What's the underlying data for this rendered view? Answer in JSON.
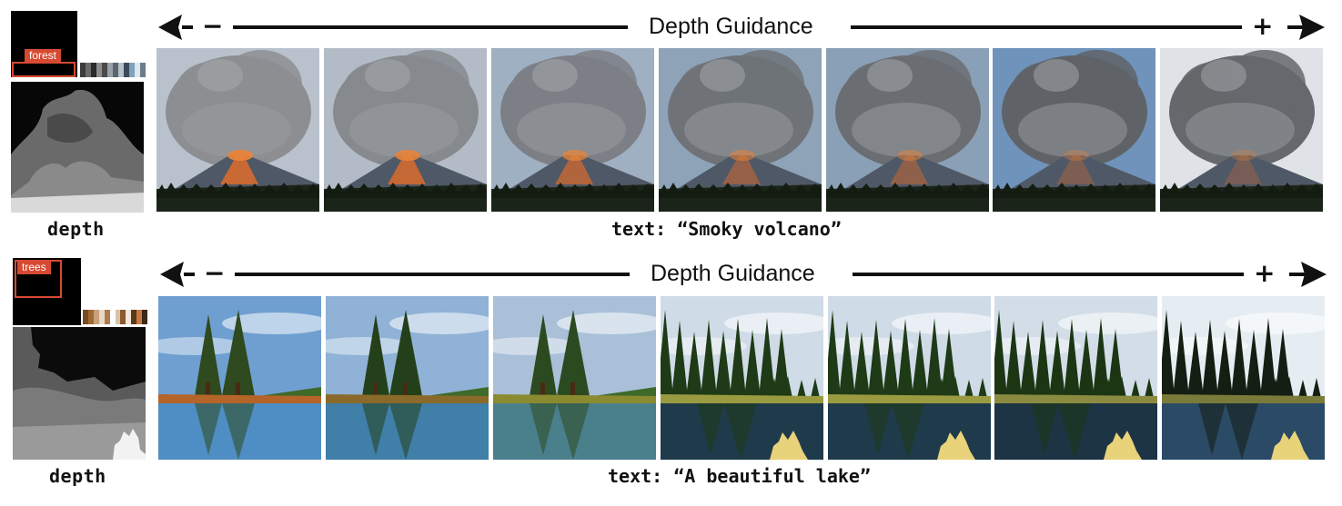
{
  "rows": [
    {
      "tag": "forest",
      "depth_caption": "depth",
      "guidance_label": "Depth Guidance",
      "minus": "−",
      "plus": "+",
      "text_caption": "text: “Smoky volcano”",
      "palette": [
        "#3c3c3c",
        "#6b6b6b",
        "#2a2a2a",
        "#8d8d8d",
        "#4a4a4a",
        "#9aa2aa",
        "#5b6671",
        "#b8c1c9",
        "#3b4a5a",
        "#7fa2bd",
        "#dfe6ec",
        "#6a7c8a"
      ],
      "tiles": [
        {
          "name": "volcano-guidance-1",
          "lava": 0.95,
          "sky": "#b9c2cc",
          "smoke": "#8c8e92"
        },
        {
          "name": "volcano-guidance-2",
          "lava": 0.9,
          "sky": "#b3bcc6",
          "smoke": "#868a8f"
        },
        {
          "name": "volcano-guidance-3",
          "lava": 0.75,
          "sky": "#9fb0c2",
          "smoke": "#7c8086"
        },
        {
          "name": "volcano-guidance-4",
          "lava": 0.55,
          "sky": "#8fa3b8",
          "smoke": "#6f7378"
        },
        {
          "name": "volcano-guidance-5",
          "lava": 0.5,
          "sky": "#8aa0b6",
          "smoke": "#6a6e73"
        },
        {
          "name": "volcano-guidance-6",
          "lava": 0.35,
          "sky": "#6f93bb",
          "smoke": "#5f6368"
        },
        {
          "name": "volcano-guidance-7",
          "lava": 0.3,
          "sky": "#dfe3e8",
          "smoke": "#65686c"
        }
      ]
    },
    {
      "tag": "trees",
      "depth_caption": "depth",
      "guidance_label": "Depth Guidance",
      "minus": "−",
      "plus": "+",
      "text_caption": "text: “A beautiful lake”",
      "palette": [
        "#7a4a20",
        "#a06a35",
        "#c9a07a",
        "#e8d8c8",
        "#b07a50",
        "#ffffff",
        "#d9c2aa",
        "#8a5a30",
        "#f2e6da",
        "#5a3a1a",
        "#c87a40",
        "#3a2a1a"
      ],
      "tiles": [
        {
          "name": "lake-guidance-1",
          "sky": "#6f9fd0",
          "water": "#4f8ec4",
          "tree": "#2e4a1e",
          "bank": "#b5652a"
        },
        {
          "name": "lake-guidance-2",
          "sky": "#8fb2d6",
          "water": "#3f7fa8",
          "tree": "#24401a",
          "bank": "#8a6a2a"
        },
        {
          "name": "lake-guidance-3",
          "sky": "#a9c0d8",
          "water": "#4a7f8c",
          "tree": "#2c4a20",
          "bank": "#8a8a30"
        },
        {
          "name": "lake-guidance-4",
          "sky": "#cfdbe6",
          "water": "#1f3a4a",
          "tree": "#1e3a16",
          "bank": "#9a9a40"
        },
        {
          "name": "lake-guidance-5",
          "sky": "#cfdbe6",
          "water": "#1f3a4a",
          "tree": "#1e3a16",
          "bank": "#9a9a40"
        },
        {
          "name": "lake-guidance-6",
          "sky": "#d2dde8",
          "water": "#1c3444",
          "tree": "#1c3614",
          "bank": "#8a8a40"
        },
        {
          "name": "lake-guidance-7",
          "sky": "#e6edf2",
          "water": "#2a4a66",
          "tree": "#141e12",
          "bank": "#7a7a3a"
        }
      ]
    }
  ]
}
